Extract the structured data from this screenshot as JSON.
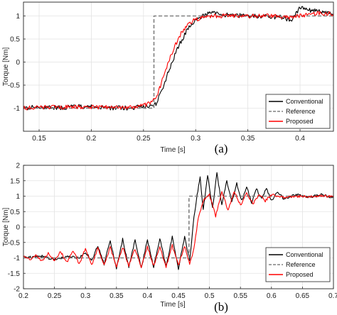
{
  "chart_data": [
    {
      "type": "line",
      "panel_label": "(a)",
      "xlabel": "Time [s]",
      "ylabel": "Torque [Nm]",
      "xlim": [
        0.135,
        0.432
      ],
      "ylim": [
        -1.5,
        1.3
      ],
      "xticks": [
        0.15,
        0.2,
        0.25,
        0.3,
        0.35,
        0.4
      ],
      "xtick_labels": [
        "0.15",
        "0.2",
        "0.25",
        "0.3",
        "0.35",
        "0.4"
      ],
      "yticks": [
        -1,
        -0.5,
        0,
        0.5,
        1
      ],
      "ytick_labels": [
        "-1",
        "-0.5",
        "0",
        "0.5",
        "1"
      ],
      "grid": true,
      "legend_position": "bottom-right",
      "series": [
        {
          "name": "Conventional",
          "color": "#000000",
          "style": "solid",
          "x": [
            0.135,
            0.15,
            0.17,
            0.19,
            0.21,
            0.23,
            0.25,
            0.262,
            0.268,
            0.274,
            0.28,
            0.286,
            0.292,
            0.298,
            0.305,
            0.315,
            0.33,
            0.35,
            0.37,
            0.385,
            0.392,
            0.4,
            0.41,
            0.42,
            0.432
          ],
          "y": [
            -1.0,
            -0.97,
            -0.99,
            -0.96,
            -0.99,
            -1.0,
            -0.97,
            -0.9,
            -0.6,
            -0.2,
            0.15,
            0.45,
            0.7,
            0.88,
            0.98,
            1.08,
            1.02,
            1.0,
            0.99,
            0.97,
            0.88,
            1.2,
            1.12,
            1.1,
            1.02
          ],
          "noise": 0.05
        },
        {
          "name": "Reference",
          "color": "#808080",
          "style": "dashed",
          "x": [
            0.135,
            0.26,
            0.26,
            0.432
          ],
          "y": [
            -1,
            -1,
            1,
            1
          ],
          "noise": 0
        },
        {
          "name": "Proposed",
          "color": "#ff0000",
          "style": "solid",
          "x": [
            0.135,
            0.15,
            0.17,
            0.19,
            0.21,
            0.23,
            0.25,
            0.262,
            0.268,
            0.274,
            0.28,
            0.286,
            0.292,
            0.298,
            0.305,
            0.315,
            0.33,
            0.35,
            0.37,
            0.385,
            0.392,
            0.4,
            0.41,
            0.42,
            0.432
          ],
          "y": [
            -1.0,
            -0.98,
            -0.98,
            -0.97,
            -0.98,
            -0.99,
            -0.95,
            -0.8,
            -0.4,
            0.0,
            0.35,
            0.62,
            0.8,
            0.9,
            0.96,
            1.0,
            1.0,
            1.0,
            1.0,
            0.98,
            0.96,
            1.0,
            1.03,
            1.06,
            1.05
          ],
          "noise": 0.045
        }
      ]
    },
    {
      "type": "line",
      "panel_label": "(b)",
      "xlabel": "Time [s]",
      "ylabel": "Torque [Nm]",
      "xlim": [
        0.2,
        0.7
      ],
      "ylim": [
        -2,
        2
      ],
      "xticks": [
        0.2,
        0.25,
        0.3,
        0.35,
        0.4,
        0.45,
        0.5,
        0.55,
        0.6,
        0.65,
        0.7
      ],
      "xtick_labels": [
        "0.2",
        "0.25",
        "0.3",
        "0.35",
        "0.4",
        "0.45",
        "0.5",
        "0.55",
        "0.6",
        "0.65",
        "0.7"
      ],
      "yticks": [
        -2,
        -1.5,
        -1,
        -0.5,
        0,
        0.5,
        1,
        1.5,
        2
      ],
      "ytick_labels": [
        "-2",
        "-1.5",
        "-1",
        "-0.5",
        "0",
        "0.5",
        "1",
        "1.5",
        "2"
      ],
      "grid": true,
      "legend_position": "bottom-right",
      "series": [
        {
          "name": "Conventional",
          "color": "#000000",
          "style": "solid",
          "x": [
            0.2,
            0.23,
            0.25,
            0.27,
            0.29,
            0.3,
            0.31,
            0.32,
            0.33,
            0.34,
            0.35,
            0.36,
            0.37,
            0.38,
            0.39,
            0.4,
            0.41,
            0.42,
            0.43,
            0.44,
            0.45,
            0.46,
            0.468,
            0.475,
            0.48,
            0.485,
            0.49,
            0.497,
            0.505,
            0.512,
            0.52,
            0.528,
            0.536,
            0.544,
            0.552,
            0.56,
            0.568,
            0.576,
            0.584,
            0.592,
            0.6,
            0.61,
            0.62,
            0.64,
            0.66,
            0.68,
            0.7
          ],
          "y": [
            -1.0,
            -0.95,
            -1.05,
            -0.95,
            -1.0,
            -0.8,
            -1.1,
            -0.6,
            -1.2,
            -0.45,
            -1.35,
            -0.4,
            -1.3,
            -0.4,
            -1.35,
            -0.4,
            -1.3,
            -0.35,
            -1.3,
            -0.3,
            -1.35,
            -0.3,
            -1.1,
            0.3,
            1.05,
            1.6,
            0.55,
            1.7,
            0.6,
            1.75,
            0.7,
            1.5,
            0.8,
            1.4,
            0.85,
            1.3,
            0.8,
            1.25,
            0.9,
            1.25,
            0.85,
            1.15,
            0.9,
            1.05,
            0.95,
            1.05,
            0.95
          ],
          "noise": 0.04
        },
        {
          "name": "Reference",
          "color": "#808080",
          "style": "dashed",
          "x": [
            0.2,
            0.467,
            0.467,
            0.7
          ],
          "y": [
            -1,
            -1,
            1,
            1
          ],
          "noise": 0
        },
        {
          "name": "Proposed",
          "color": "#ff0000",
          "style": "solid",
          "x": [
            0.2,
            0.21,
            0.22,
            0.23,
            0.24,
            0.25,
            0.26,
            0.27,
            0.28,
            0.29,
            0.3,
            0.31,
            0.32,
            0.33,
            0.34,
            0.35,
            0.36,
            0.37,
            0.38,
            0.39,
            0.4,
            0.41,
            0.42,
            0.43,
            0.44,
            0.45,
            0.46,
            0.468,
            0.475,
            0.482,
            0.49,
            0.5,
            0.51,
            0.52,
            0.53,
            0.54,
            0.55,
            0.56,
            0.57,
            0.58,
            0.59,
            0.6,
            0.62,
            0.64,
            0.66,
            0.68,
            0.7
          ],
          "y": [
            -0.95,
            -1.05,
            -0.9,
            -1.1,
            -0.85,
            -1.1,
            -0.8,
            -1.15,
            -0.75,
            -1.2,
            -0.7,
            -1.25,
            -0.7,
            -1.25,
            -0.65,
            -1.3,
            -0.65,
            -1.25,
            -0.7,
            -1.3,
            -0.65,
            -1.25,
            -0.65,
            -1.3,
            -0.6,
            -1.25,
            -0.6,
            -1.2,
            -0.7,
            0.3,
            0.85,
            1.05,
            0.35,
            1.15,
            0.55,
            1.15,
            0.7,
            1.1,
            0.75,
            1.05,
            0.85,
            1.05,
            0.95,
            1.0,
            0.98,
            1.02,
            0.97
          ],
          "noise": 0.04
        }
      ]
    }
  ]
}
